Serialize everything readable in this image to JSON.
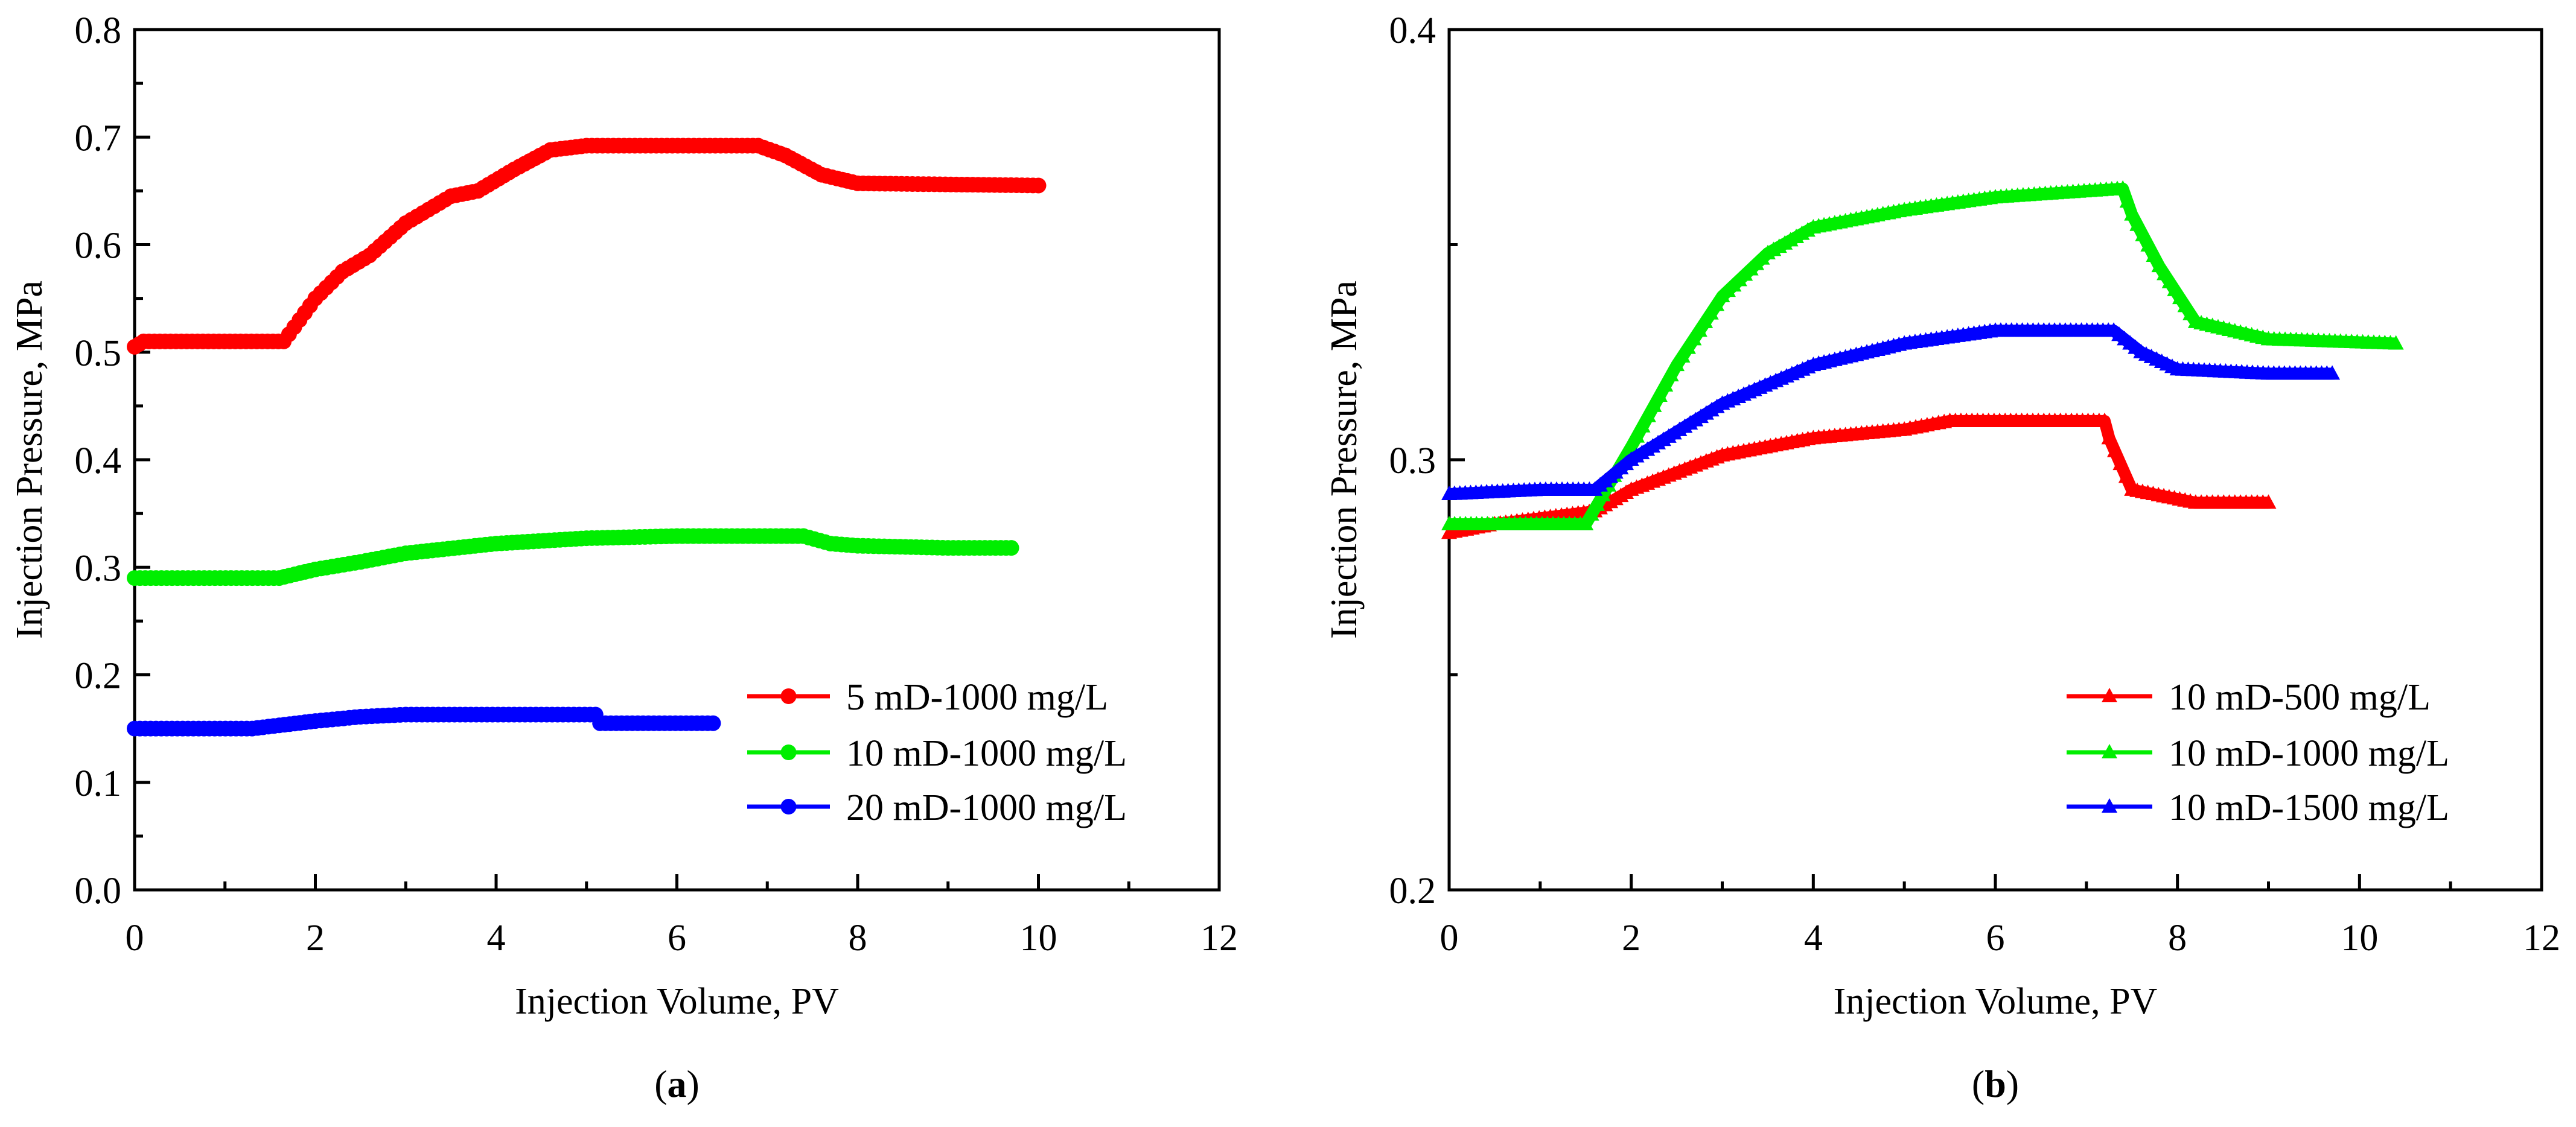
{
  "chart_data": [
    {
      "type": "scatter",
      "panel_label": "a",
      "xlabel": "Injection Volume, PV",
      "ylabel": "Injection Pressure, MPa",
      "xlim": [
        0,
        12
      ],
      "ylim": [
        0,
        0.8
      ],
      "xticks": [
        "0",
        "2",
        "4",
        "6",
        "8",
        "10",
        "12"
      ],
      "yticks": [
        "0.0",
        "0.1",
        "0.2",
        "0.3",
        "0.4",
        "0.5",
        "0.6",
        "0.7",
        "0.8"
      ],
      "xtick_values": [
        0,
        2,
        4,
        6,
        8,
        10,
        12
      ],
      "ytick_values": [
        0,
        0.1,
        0.2,
        0.3,
        0.4,
        0.5,
        0.6,
        0.7,
        0.8
      ],
      "xminor": [
        1,
        3,
        5,
        7,
        9,
        11
      ],
      "yminor": [
        0.05,
        0.15,
        0.25,
        0.35,
        0.45,
        0.55,
        0.65,
        0.75
      ],
      "grid": false,
      "legend_position": "bottom-right",
      "marker": "circle",
      "series": [
        {
          "name": "5 mD-1000 mg/L",
          "color": "#ff0000",
          "points": [
            [
              0,
              0.505
            ],
            [
              0.1,
              0.51
            ],
            [
              1.65,
              0.51
            ],
            [
              2,
              0.55
            ],
            [
              2.3,
              0.575
            ],
            [
              2.6,
              0.59
            ],
            [
              3,
              0.62
            ],
            [
              3.5,
              0.645
            ],
            [
              3.8,
              0.65
            ],
            [
              4.2,
              0.67
            ],
            [
              4.6,
              0.688
            ],
            [
              5,
              0.692
            ],
            [
              6.9,
              0.692
            ],
            [
              7.2,
              0.683
            ],
            [
              7.6,
              0.665
            ],
            [
              8,
              0.657
            ],
            [
              10,
              0.655
            ]
          ]
        },
        {
          "name": "10 mD-1000 mg/L",
          "color": "#00ee00",
          "points": [
            [
              0,
              0.29
            ],
            [
              1.6,
              0.29
            ],
            [
              2,
              0.298
            ],
            [
              2.5,
              0.305
            ],
            [
              3,
              0.313
            ],
            [
              4,
              0.322
            ],
            [
              5,
              0.327
            ],
            [
              6,
              0.329
            ],
            [
              7.4,
              0.329
            ],
            [
              7.7,
              0.322
            ],
            [
              8,
              0.32
            ],
            [
              9,
              0.318
            ],
            [
              9.7,
              0.318
            ]
          ]
        },
        {
          "name": "20 mD-1000 mg/L",
          "color": "#0000ff",
          "points": [
            [
              0,
              0.15
            ],
            [
              1.3,
              0.15
            ],
            [
              1.6,
              0.153
            ],
            [
              2,
              0.157
            ],
            [
              2.5,
              0.161
            ],
            [
              3,
              0.163
            ],
            [
              5.1,
              0.163
            ],
            [
              5.15,
              0.155
            ],
            [
              6.4,
              0.155
            ]
          ]
        }
      ]
    },
    {
      "type": "scatter",
      "panel_label": "b",
      "xlabel": "Injection Volume, PV",
      "ylabel": "Injection Pressure, MPa",
      "xlim": [
        0,
        12
      ],
      "ylim": [
        0.2,
        0.4
      ],
      "xticks": [
        "0",
        "2",
        "4",
        "6",
        "8",
        "10",
        "12"
      ],
      "yticks": [
        "0.2",
        "0.3",
        "0.4"
      ],
      "xtick_values": [
        0,
        2,
        4,
        6,
        8,
        10,
        12
      ],
      "ytick_values": [
        0.2,
        0.3,
        0.4
      ],
      "xminor": [
        1,
        3,
        5,
        7,
        9,
        11
      ],
      "yminor": [
        0.25,
        0.35
      ],
      "grid": false,
      "legend_position": "bottom-right",
      "marker": "triangle",
      "series": [
        {
          "name": "10 mD-500 mg/L",
          "color": "#ff0000",
          "points": [
            [
              0,
              0.283
            ],
            [
              0.5,
              0.285
            ],
            [
              1.6,
              0.288
            ],
            [
              2,
              0.293
            ],
            [
              3,
              0.301
            ],
            [
              4,
              0.305
            ],
            [
              5,
              0.307
            ],
            [
              5.5,
              0.309
            ],
            [
              7.2,
              0.309
            ],
            [
              7.25,
              0.305
            ],
            [
              7.5,
              0.293
            ],
            [
              8.2,
              0.29
            ],
            [
              9,
              0.29
            ]
          ]
        },
        {
          "name": "10 mD-1000 mg/L",
          "color": "#00ee00",
          "points": [
            [
              0,
              0.285
            ],
            [
              1.5,
              0.285
            ],
            [
              2,
              0.303
            ],
            [
              2.5,
              0.322
            ],
            [
              3,
              0.338
            ],
            [
              3.5,
              0.348
            ],
            [
              4,
              0.354
            ],
            [
              5,
              0.358
            ],
            [
              6,
              0.361
            ],
            [
              7.4,
              0.363
            ],
            [
              7.5,
              0.357
            ],
            [
              7.8,
              0.345
            ],
            [
              8.2,
              0.332
            ],
            [
              9,
              0.328
            ],
            [
              10.4,
              0.327
            ]
          ]
        },
        {
          "name": "10 mD-1500 mg/L",
          "color": "#0000ff",
          "points": [
            [
              0,
              0.292
            ],
            [
              1,
              0.293
            ],
            [
              1.6,
              0.293
            ],
            [
              2,
              0.3
            ],
            [
              3,
              0.313
            ],
            [
              4,
              0.322
            ],
            [
              5,
              0.327
            ],
            [
              6,
              0.33
            ],
            [
              7.3,
              0.33
            ],
            [
              7.6,
              0.325
            ],
            [
              8,
              0.321
            ],
            [
              9,
              0.32
            ],
            [
              9.7,
              0.32
            ]
          ]
        }
      ]
    }
  ]
}
